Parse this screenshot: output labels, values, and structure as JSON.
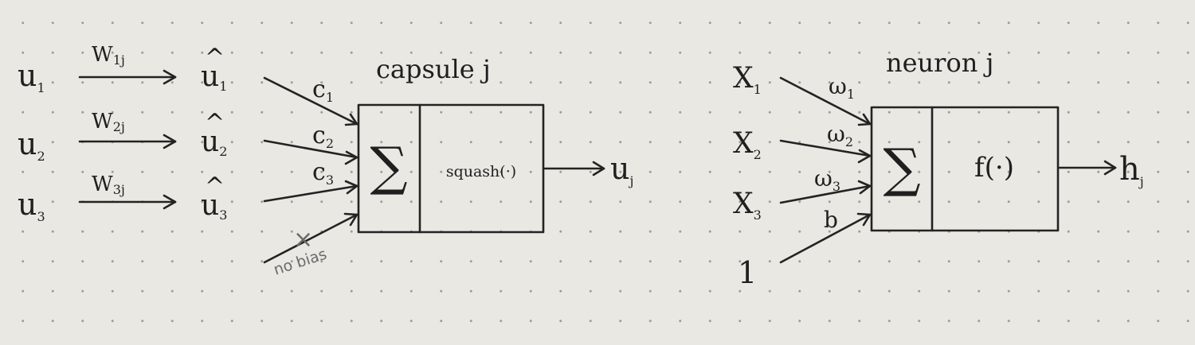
{
  "capsule": {
    "title": "capsule j",
    "inputs": [
      {
        "base": "u",
        "sub": "1"
      },
      {
        "base": "u",
        "sub": "2"
      },
      {
        "base": "u",
        "sub": "3"
      }
    ],
    "weights": [
      {
        "base": "W",
        "sub": "1j"
      },
      {
        "base": "W",
        "sub": "2j"
      },
      {
        "base": "W",
        "sub": "3j"
      }
    ],
    "predictions": [
      {
        "hat": "^",
        "base": "u",
        "sub": "1"
      },
      {
        "hat": "^",
        "base": "u",
        "sub": "2"
      },
      {
        "hat": "^",
        "base": "u",
        "sub": "3"
      }
    ],
    "couplings": [
      {
        "base": "c",
        "sub": "1"
      },
      {
        "base": "c",
        "sub": "2"
      },
      {
        "base": "c",
        "sub": "3"
      }
    ],
    "sum_symbol": "∑",
    "activation": "squash(·)",
    "output": {
      "base": "u",
      "sub": "j"
    },
    "no_bias_mark": "×",
    "no_bias_label": "no bias"
  },
  "neuron": {
    "title": "neuron j",
    "inputs": [
      {
        "base": "X",
        "sub": "1"
      },
      {
        "base": "X",
        "sub": "2"
      },
      {
        "base": "X",
        "sub": "3"
      }
    ],
    "bias_input": "1",
    "weights": [
      {
        "base": "ω",
        "sub": "1"
      },
      {
        "base": "ω",
        "sub": "2"
      },
      {
        "base": "ω",
        "sub": "3"
      }
    ],
    "bias_weight": "b",
    "sum_symbol": "∑",
    "activation": "f(·)",
    "output": {
      "base": "h",
      "sub": "j"
    }
  }
}
